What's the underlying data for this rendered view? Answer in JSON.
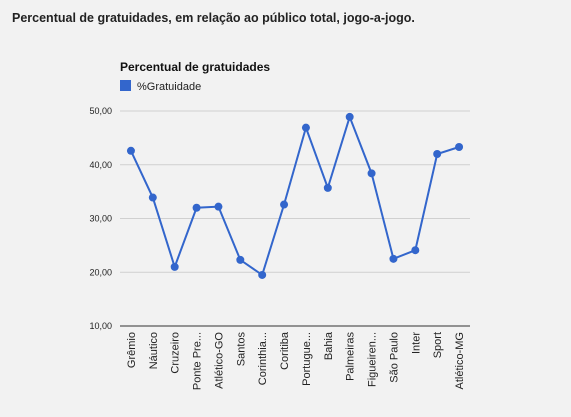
{
  "page": {
    "title": "Percentual de gratuidades, em relação ao público total, jogo-a-jogo."
  },
  "chart_data": {
    "type": "line",
    "title": "Percentual de gratuidades",
    "xlabel": "",
    "ylabel": "",
    "legend_position": "top-left",
    "grid": true,
    "ylim": [
      10,
      50
    ],
    "yticks": [
      "10,00",
      "20,00",
      "30,00",
      "40,00",
      "50,00"
    ],
    "categories": [
      "Grêmio",
      "Náutico",
      "Cruzeiro",
      "Ponte Pre...",
      "Atlético-GO",
      "Santos",
      "Corinthia...",
      "Coritiba",
      "Portugue...",
      "Bahia",
      "Palmeiras",
      "Figueiren...",
      "São Paulo",
      "Inter",
      "Sport",
      "Atlético-MG"
    ],
    "series": [
      {
        "name": "%Gratuidade",
        "color": "#3366cc",
        "values": [
          42.6,
          33.9,
          21.0,
          32.0,
          32.2,
          22.3,
          19.5,
          32.6,
          46.9,
          35.7,
          48.9,
          38.4,
          22.5,
          24.1,
          42.0,
          43.3
        ]
      }
    ]
  }
}
